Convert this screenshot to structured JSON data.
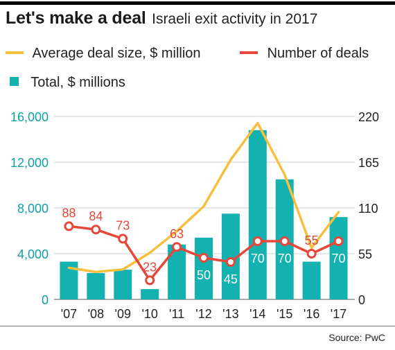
{
  "header": {
    "title": "Let's make a deal",
    "subtitle": "Israeli exit activity in 2017"
  },
  "legend": {
    "avg_label": "Average deal size, $ million",
    "num_label": "Number of deals",
    "total_label": "Total, $ millions"
  },
  "source": "Source: PwC",
  "colors": {
    "bars": "#14b1b1",
    "avg_line": "#f6bf3d",
    "num_line": "#e5473a",
    "left_axis_text": "#0e9fa5",
    "right_axis_text": "#222222",
    "grid": "#cfcfcf"
  },
  "chart_data": {
    "type": "bar",
    "categories": [
      "'07",
      "'08",
      "'09",
      "'10",
      "'11",
      "'12",
      "'13",
      "'14",
      "'15",
      "'16",
      "'17"
    ],
    "left_axis": {
      "ticks": [
        "0",
        "4,000",
        "8,000",
        "12,000",
        "16,000"
      ],
      "ylim": [
        0,
        16000
      ]
    },
    "right_axis": {
      "ticks": [
        "0",
        "55",
        "110",
        "165",
        "220"
      ],
      "ylim": [
        0,
        220
      ]
    },
    "series": [
      {
        "name": "Total, $ millions",
        "type": "bar",
        "axis": "left",
        "values": [
          3300,
          2300,
          2600,
          900,
          4800,
          5400,
          7500,
          14800,
          10500,
          3300,
          7200
        ]
      },
      {
        "name": "Average deal size, $ million",
        "type": "line",
        "axis": "right",
        "values": [
          38,
          33,
          36,
          56,
          82,
          112,
          168,
          212,
          150,
          62,
          105
        ]
      },
      {
        "name": "Number of deals",
        "type": "line",
        "axis": "right",
        "values": [
          88,
          84,
          73,
          23,
          63,
          50,
          45,
          70,
          70,
          55,
          70
        ],
        "labels": [
          "88",
          "84",
          "73",
          "23",
          "63",
          "50",
          "45",
          "70",
          "70",
          "55",
          "70"
        ]
      }
    ],
    "grid": true,
    "legend_position": "top"
  }
}
